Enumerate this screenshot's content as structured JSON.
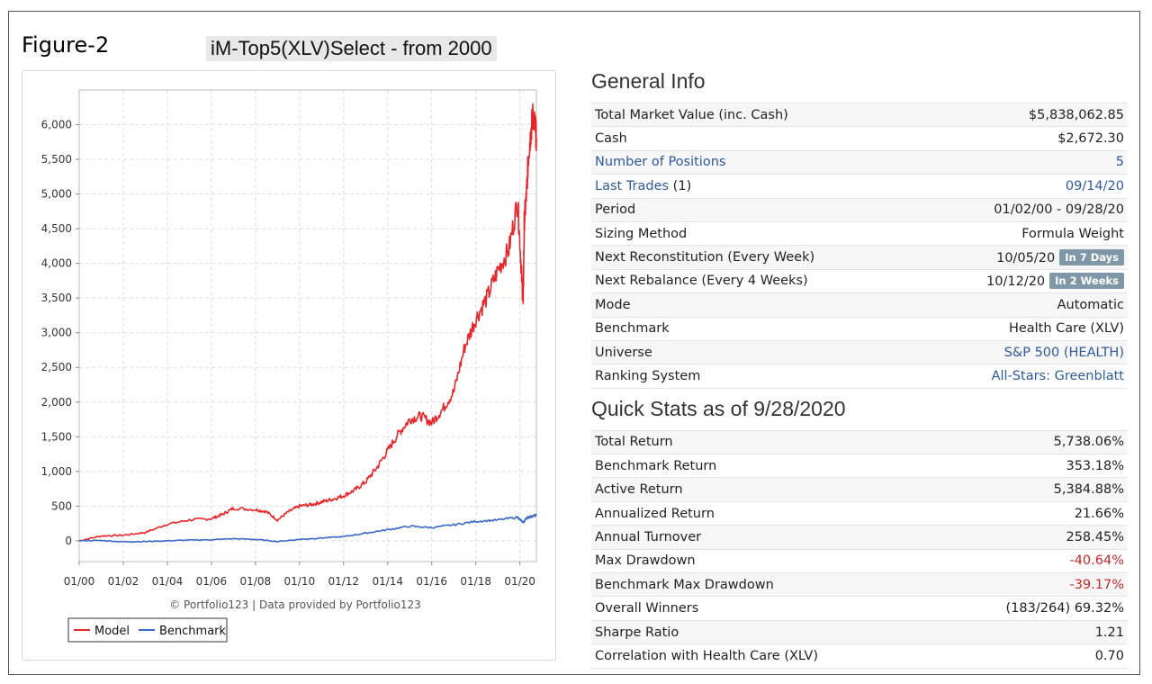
{
  "figure_label": "Figure-2",
  "figure_title": "iM-Top5(XLV)Select - from 2000",
  "general_info": {
    "title": "General Info",
    "rows": [
      {
        "label": "Total Market Value (inc. Cash)",
        "value": "$5,838,062.85"
      },
      {
        "label": "Cash",
        "value": "$2,672.30"
      },
      {
        "label": "Number of Positions",
        "value": "5"
      },
      {
        "label": "Last Trades",
        "label_suffix": "(1)",
        "value": "09/14/20"
      },
      {
        "label": "Period",
        "value": "01/02/00 - 09/28/20"
      },
      {
        "label": "Sizing Method",
        "value": "Formula Weight"
      },
      {
        "label": "Next Reconstitution (Every Week)",
        "value": "10/05/20",
        "badge": "In 7 Days"
      },
      {
        "label": "Next Rebalance (Every 4 Weeks)",
        "value": "10/12/20",
        "badge": "In 2 Weeks"
      },
      {
        "label": "Mode",
        "value": "Automatic"
      },
      {
        "label": "Benchmark",
        "value": "Health Care (XLV)"
      },
      {
        "label": "Universe",
        "value": "S&P 500 (HEALTH)"
      },
      {
        "label": "Ranking System",
        "value": "All-Stars: Greenblatt"
      }
    ]
  },
  "quick_stats": {
    "title": "Quick Stats as of 9/28/2020",
    "rows": [
      {
        "label": "Total Return",
        "value": "5,738.06%"
      },
      {
        "label": "Benchmark Return",
        "value": "353.18%"
      },
      {
        "label": "Active Return",
        "value": "5,384.88%"
      },
      {
        "label": "Annualized Return",
        "value": "21.66%"
      },
      {
        "label": "Annual Turnover",
        "value": "258.45%"
      },
      {
        "label": "Max Drawdown",
        "value": "-40.64%"
      },
      {
        "label": "Benchmark Max Drawdown",
        "value": "-39.17%"
      },
      {
        "label": "Overall Winners",
        "value": "(183/264) 69.32%"
      },
      {
        "label": "Sharpe Ratio",
        "value": "1.21"
      },
      {
        "label": "Correlation with Health Care (XLV)",
        "value": "0.70"
      }
    ]
  },
  "colors": {
    "model": "#e8262a",
    "benchmark": "#3a68c8",
    "link": "#2f5a97",
    "negative": "#c62828"
  },
  "chart_data": {
    "type": "line",
    "credit": "© Portfolio123 | Data provided by Portfolio123",
    "xlim": [
      2000.0,
      2020.75
    ],
    "ylim": [
      -300,
      6500
    ],
    "x_ticks": [
      2000,
      2002,
      2004,
      2006,
      2008,
      2010,
      2012,
      2014,
      2016,
      2018,
      2020
    ],
    "x_tick_labels": [
      "01/00",
      "01/02",
      "01/04",
      "01/06",
      "01/08",
      "01/10",
      "01/12",
      "01/14",
      "01/16",
      "01/18",
      "01/20"
    ],
    "y_ticks": [
      0,
      500,
      1000,
      1500,
      2000,
      2500,
      3000,
      3500,
      4000,
      4500,
      5000,
      5500,
      6000
    ],
    "y_tick_labels": [
      "0",
      "500",
      "1,000",
      "1,500",
      "2,000",
      "2,500",
      "3,000",
      "3,500",
      "4,000",
      "4,500",
      "5,000",
      "5,500",
      "6,000"
    ],
    "grid": true,
    "legend": "bottom-left",
    "series": [
      {
        "name": "Model",
        "x": [
          2000.0,
          2001.0,
          2002.0,
          2003.0,
          2004.0,
          2005.0,
          2006.0,
          2006.5,
          2007.0,
          2008.0,
          2008.5,
          2009.0,
          2009.5,
          2010.0,
          2010.5,
          2011.0,
          2011.5,
          2012.0,
          2012.5,
          2013.0,
          2013.5,
          2014.0,
          2014.5,
          2015.0,
          2015.5,
          2016.0,
          2016.5,
          2017.0,
          2017.5,
          2018.0,
          2018.5,
          2019.0,
          2019.5,
          2019.9,
          2020.05,
          2020.15,
          2020.2,
          2020.3,
          2020.4,
          2020.5,
          2020.6,
          2020.7,
          2020.75
        ],
        "y": [
          0,
          70,
          80,
          120,
          240,
          300,
          320,
          380,
          470,
          450,
          420,
          300,
          420,
          500,
          520,
          560,
          600,
          650,
          730,
          850,
          1050,
          1300,
          1550,
          1750,
          1800,
          1700,
          1900,
          2150,
          2800,
          3200,
          3500,
          3900,
          4200,
          4900,
          4000,
          3400,
          4600,
          5000,
          5600,
          5900,
          6150,
          5950,
          5800
        ]
      },
      {
        "name": "Benchmark",
        "x": [
          2000.0,
          2001.0,
          2002.0,
          2003.0,
          2004.0,
          2005.0,
          2006.0,
          2007.0,
          2008.0,
          2009.0,
          2010.0,
          2011.0,
          2012.0,
          2013.0,
          2014.0,
          2015.0,
          2016.0,
          2017.0,
          2018.0,
          2019.0,
          2019.9,
          2020.15,
          2020.3,
          2020.5,
          2020.75
        ],
        "y": [
          0,
          5,
          -15,
          -10,
          0,
          10,
          15,
          30,
          20,
          -10,
          20,
          40,
          60,
          110,
          160,
          210,
          190,
          230,
          280,
          300,
          340,
          260,
          330,
          350,
          370
        ]
      }
    ]
  }
}
